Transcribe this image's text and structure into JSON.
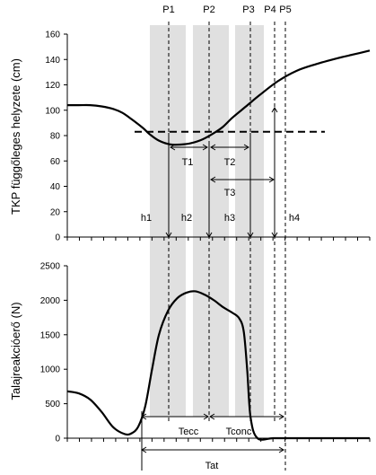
{
  "chart_data": [
    {
      "type": "line",
      "title": "",
      "ylabel": "TKP függőleges helyzete (cm)",
      "xlabel": "",
      "ylim": [
        0,
        160
      ],
      "yticks": [
        "0",
        "20",
        "40",
        "60",
        "80",
        "100",
        "120",
        "140",
        "160"
      ],
      "grid": false,
      "x_ticks": 26,
      "series": [
        {
          "x": [
            0,
            0.5,
            1,
            1.5,
            2,
            2.4,
            2.8,
            3.3,
            3.6,
            4,
            4.5,
            5,
            5.4,
            5.9,
            6.4,
            6.8,
            7.2,
            7.8,
            8.4,
            9.2,
            10,
            10.8,
            11.8,
            12.5,
            13.2
          ],
          "y": [
            104,
            104,
            104,
            103,
            101,
            98,
            93,
            86,
            81,
            76,
            73,
            73,
            74,
            77,
            82,
            87,
            94,
            103,
            112,
            123,
            131,
            136,
            141,
            144,
            147
          ]
        }
      ],
      "reference_line": {
        "style": "dashed",
        "y": 83
      },
      "annotations": {
        "markers": [
          "P1",
          "P2",
          "P3",
          "P4",
          "P5"
        ],
        "intervals": [
          "T1",
          "T2",
          "T3"
        ],
        "heights": [
          "h1",
          "h2",
          "h3",
          "h4"
        ]
      }
    },
    {
      "type": "line",
      "title": "",
      "ylabel": "Talajreakcióerő (N)",
      "xlabel": "",
      "ylim": [
        0,
        2500
      ],
      "yticks": [
        "0",
        "500",
        "1000",
        "1500",
        "2000",
        "2500"
      ],
      "grid": false,
      "x_ticks": 26,
      "series": [
        {
          "x": [
            0,
            0.5,
            1,
            1.5,
            2,
            2.5,
            2.8,
            3.1,
            3.4,
            3.7,
            4,
            4.4,
            4.8,
            5.2,
            5.6,
            6,
            6.4,
            6.8,
            7.2,
            7.5,
            7.7,
            7.85,
            8,
            8.3,
            9,
            10,
            11,
            12,
            13.2
          ],
          "y": [
            680,
            650,
            560,
            380,
            160,
            60,
            70,
            170,
            460,
            1000,
            1500,
            1850,
            2030,
            2110,
            2130,
            2080,
            2000,
            1900,
            1820,
            1740,
            1550,
            1000,
            300,
            0,
            0,
            0,
            0,
            0,
            0
          ]
        }
      ],
      "annotations": {
        "intervals": [
          "Tecc",
          "Tconc",
          "Tat"
        ]
      }
    }
  ],
  "figure": {
    "shaded_band_color": "#e0e0e0",
    "phase_bands": 3
  }
}
